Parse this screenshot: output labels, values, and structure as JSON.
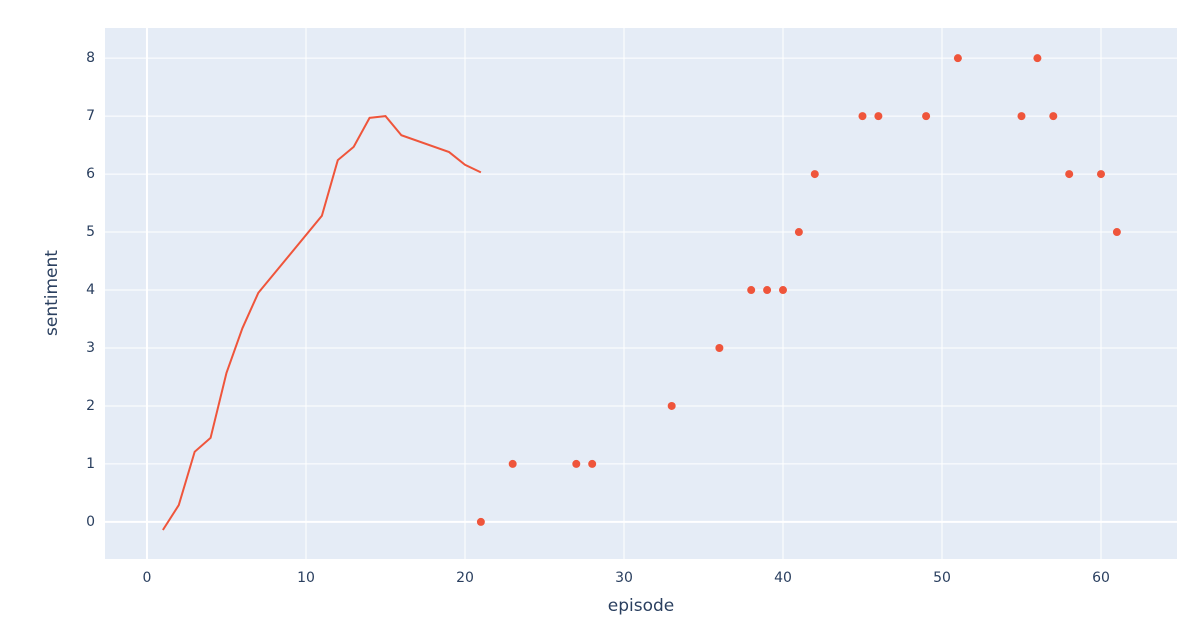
{
  "chart_data": {
    "type": "line",
    "x_label": "episode",
    "y_label": "sentiment",
    "xlim": [
      -2.64,
      64.78
    ],
    "ylim": [
      -0.64,
      8.52
    ],
    "xticks": [
      0,
      10,
      20,
      30,
      40,
      50,
      60
    ],
    "yticks": [
      0,
      1,
      2,
      3,
      4,
      5,
      6,
      7,
      8
    ],
    "grid": true,
    "series": [
      {
        "mode": "lines",
        "color": "#ef553b",
        "x": [
          1,
          2,
          3,
          4,
          5,
          6,
          7,
          11,
          12,
          13,
          14,
          15,
          16,
          19,
          20,
          21
        ],
        "values": [
          -0.14,
          0.29,
          1.21,
          1.45,
          2.57,
          3.34,
          3.95,
          5.28,
          6.24,
          6.47,
          6.97,
          7.0,
          6.67,
          6.38,
          6.16,
          6.03
        ]
      },
      {
        "mode": "markers",
        "color": "#ef553b",
        "x": [
          21,
          23,
          27,
          28,
          33,
          36,
          38,
          39,
          40,
          41,
          42,
          45,
          46,
          49,
          51,
          55,
          56,
          57,
          58,
          60,
          61
        ],
        "values": [
          0,
          1,
          1,
          1,
          2,
          3,
          4,
          4,
          4,
          5,
          6,
          7,
          7,
          7,
          8,
          7,
          8,
          7,
          6,
          6,
          5
        ]
      }
    ]
  }
}
